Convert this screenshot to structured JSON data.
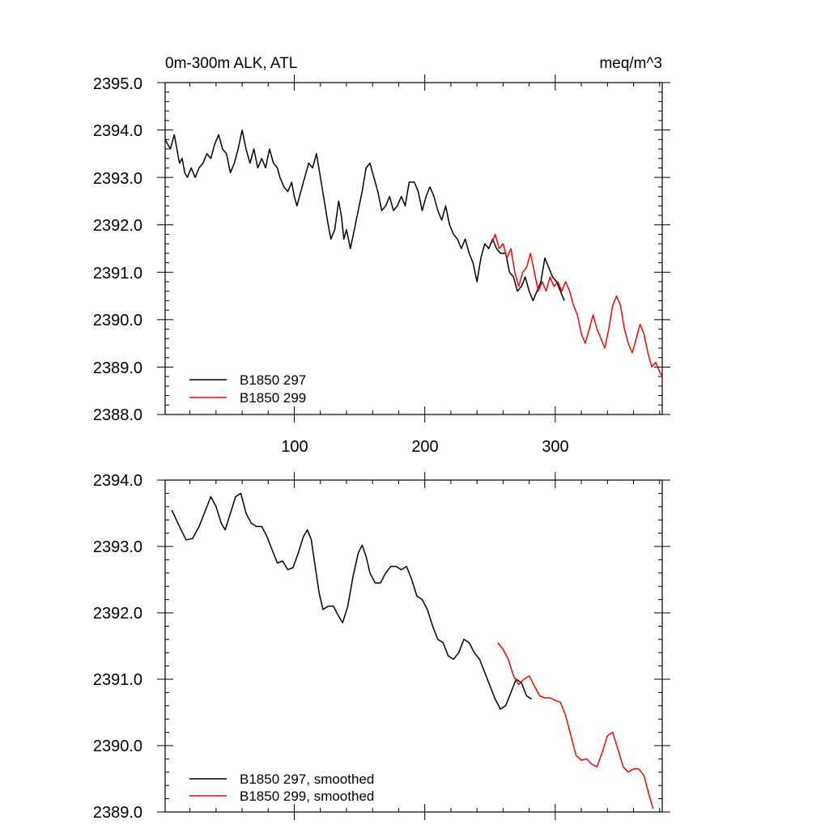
{
  "chart_data": [
    {
      "type": "line",
      "title": "0m-300m ALK, ATL",
      "units": "meq/m^3",
      "xlim": [
        1,
        382
      ],
      "ylim": [
        2388.0,
        2395.0
      ],
      "xticks": [
        100,
        200,
        300
      ],
      "xtick_labels": [
        "100",
        "200",
        "300"
      ],
      "yticks": [
        2388.0,
        2389.0,
        2390.0,
        2391.0,
        2392.0,
        2393.0,
        2394.0,
        2395.0
      ],
      "ytick_labels": [
        "2388.0",
        "2389.0",
        "2390.0",
        "2391.0",
        "2392.0",
        "2393.0",
        "2394.0",
        "2395.0"
      ],
      "legend_position": "bottom-left",
      "series": [
        {
          "name": "B1850 297",
          "color": "#000000",
          "points": [
            [
              1,
              2393.8
            ],
            [
              5,
              2393.6
            ],
            [
              8,
              2393.9
            ],
            [
              12,
              2393.3
            ],
            [
              14,
              2393.4
            ],
            [
              16,
              2393.1
            ],
            [
              18,
              2393.0
            ],
            [
              21,
              2393.2
            ],
            [
              24,
              2393.0
            ],
            [
              27,
              2393.2
            ],
            [
              30,
              2393.3
            ],
            [
              33,
              2393.5
            ],
            [
              36,
              2393.4
            ],
            [
              39,
              2393.7
            ],
            [
              42,
              2393.9
            ],
            [
              45,
              2393.6
            ],
            [
              48,
              2393.5
            ],
            [
              51,
              2393.1
            ],
            [
              54,
              2393.3
            ],
            [
              57,
              2393.6
            ],
            [
              60,
              2394.0
            ],
            [
              63,
              2393.6
            ],
            [
              66,
              2393.3
            ],
            [
              69,
              2393.6
            ],
            [
              72,
              2393.2
            ],
            [
              75,
              2393.4
            ],
            [
              78,
              2393.2
            ],
            [
              81,
              2393.6
            ],
            [
              84,
              2393.3
            ],
            [
              87,
              2393.2
            ],
            [
              89,
              2393.0
            ],
            [
              92,
              2392.8
            ],
            [
              95,
              2392.7
            ],
            [
              98,
              2392.9
            ],
            [
              100,
              2392.6
            ],
            [
              102,
              2392.4
            ],
            [
              105,
              2392.7
            ],
            [
              108,
              2393.0
            ],
            [
              111,
              2393.3
            ],
            [
              114,
              2393.2
            ],
            [
              117,
              2393.5
            ],
            [
              120,
              2393.0
            ],
            [
              123,
              2392.5
            ],
            [
              126,
              2392.0
            ],
            [
              128,
              2391.7
            ],
            [
              131,
              2391.9
            ],
            [
              134,
              2392.5
            ],
            [
              136,
              2392.2
            ],
            [
              138,
              2391.7
            ],
            [
              140,
              2391.9
            ],
            [
              143,
              2391.5
            ],
            [
              146,
              2391.9
            ],
            [
              149,
              2392.3
            ],
            [
              152,
              2392.7
            ],
            [
              155,
              2393.2
            ],
            [
              158,
              2393.3
            ],
            [
              161,
              2393.0
            ],
            [
              164,
              2392.7
            ],
            [
              167,
              2392.3
            ],
            [
              170,
              2392.4
            ],
            [
              173,
              2392.6
            ],
            [
              176,
              2392.3
            ],
            [
              179,
              2392.4
            ],
            [
              182,
              2392.6
            ],
            [
              185,
              2392.4
            ],
            [
              188,
              2392.9
            ],
            [
              192,
              2392.9
            ],
            [
              195,
              2392.7
            ],
            [
              198,
              2392.3
            ],
            [
              201,
              2392.6
            ],
            [
              204,
              2392.8
            ],
            [
              207,
              2392.6
            ],
            [
              210,
              2392.3
            ],
            [
              213,
              2392.1
            ],
            [
              216,
              2392.4
            ],
            [
              219,
              2392.0
            ],
            [
              222,
              2391.8
            ],
            [
              225,
              2391.7
            ],
            [
              228,
              2391.5
            ],
            [
              231,
              2391.7
            ],
            [
              234,
              2391.4
            ],
            [
              237,
              2391.2
            ],
            [
              240,
              2390.8
            ],
            [
              243,
              2391.3
            ],
            [
              246,
              2391.6
            ],
            [
              249,
              2391.5
            ],
            [
              252,
              2391.7
            ],
            [
              255,
              2391.5
            ],
            [
              258,
              2391.4
            ],
            [
              262,
              2391.4
            ],
            [
              265,
              2391.0
            ],
            [
              268,
              2390.9
            ],
            [
              271,
              2390.6
            ],
            [
              274,
              2390.7
            ],
            [
              277,
              2390.9
            ],
            [
              280,
              2390.6
            ],
            [
              283,
              2390.4
            ],
            [
              286,
              2390.6
            ],
            [
              289,
              2390.8
            ],
            [
              292,
              2391.3
            ],
            [
              295,
              2391.1
            ],
            [
              298,
              2390.9
            ],
            [
              301,
              2390.8
            ],
            [
              304,
              2390.6
            ],
            [
              307,
              2390.4
            ]
          ]
        },
        {
          "name": "B1850 299",
          "color": "#ff0000",
          "points": [
            [
              251,
              2391.6
            ],
            [
              254,
              2391.8
            ],
            [
              257,
              2391.5
            ],
            [
              260,
              2391.6
            ],
            [
              263,
              2391.3
            ],
            [
              266,
              2391.5
            ],
            [
              269,
              2391.0
            ],
            [
              272,
              2390.7
            ],
            [
              275,
              2391.0
            ],
            [
              278,
              2391.1
            ],
            [
              281,
              2391.4
            ],
            [
              284,
              2391.0
            ],
            [
              287,
              2390.6
            ],
            [
              290,
              2390.8
            ],
            [
              293,
              2390.6
            ],
            [
              296,
              2390.9
            ],
            [
              299,
              2390.7
            ],
            [
              302,
              2390.8
            ],
            [
              305,
              2390.6
            ],
            [
              308,
              2390.8
            ],
            [
              311,
              2390.6
            ],
            [
              314,
              2390.3
            ],
            [
              317,
              2390.1
            ],
            [
              320,
              2389.7
            ],
            [
              323,
              2389.5
            ],
            [
              326,
              2389.8
            ],
            [
              329,
              2390.1
            ],
            [
              332,
              2389.8
            ],
            [
              335,
              2389.6
            ],
            [
              338,
              2389.4
            ],
            [
              341,
              2389.8
            ],
            [
              344,
              2390.3
            ],
            [
              347,
              2390.5
            ],
            [
              350,
              2390.3
            ],
            [
              353,
              2389.8
            ],
            [
              356,
              2389.5
            ],
            [
              359,
              2389.3
            ],
            [
              362,
              2389.6
            ],
            [
              365,
              2389.9
            ],
            [
              368,
              2389.7
            ],
            [
              371,
              2389.3
            ],
            [
              374,
              2389.0
            ],
            [
              377,
              2389.1
            ],
            [
              380,
              2388.9
            ],
            [
              382,
              2388.8
            ]
          ]
        }
      ]
    },
    {
      "type": "line",
      "title": "",
      "units": "",
      "xlim": [
        1,
        382
      ],
      "ylim": [
        2389.0,
        2394.0
      ],
      "xticks": [
        100,
        200,
        300
      ],
      "xtick_labels": [],
      "yticks": [
        2389.0,
        2390.0,
        2391.0,
        2392.0,
        2393.0,
        2394.0
      ],
      "ytick_labels": [
        "2389.0",
        "2390.0",
        "2391.0",
        "2392.0",
        "2393.0",
        "2394.0"
      ],
      "legend_position": "bottom-left",
      "series": [
        {
          "name": "B1850 297, smoothed",
          "color": "#000000",
          "points": [
            [
              6,
              2393.55
            ],
            [
              12,
              2393.3
            ],
            [
              17,
              2393.1
            ],
            [
              22,
              2393.12
            ],
            [
              27,
              2393.3
            ],
            [
              32,
              2393.55
            ],
            [
              36,
              2393.75
            ],
            [
              40,
              2393.6
            ],
            [
              44,
              2393.35
            ],
            [
              47,
              2393.25
            ],
            [
              51,
              2393.5
            ],
            [
              55,
              2393.75
            ],
            [
              59,
              2393.8
            ],
            [
              63,
              2393.5
            ],
            [
              67,
              2393.35
            ],
            [
              71,
              2393.3
            ],
            [
              75,
              2393.3
            ],
            [
              79,
              2393.15
            ],
            [
              83,
              2392.95
            ],
            [
              87,
              2392.75
            ],
            [
              91,
              2392.78
            ],
            [
              95,
              2392.65
            ],
            [
              99,
              2392.68
            ],
            [
              103,
              2392.9
            ],
            [
              107,
              2393.15
            ],
            [
              110,
              2393.25
            ],
            [
              113,
              2393.1
            ],
            [
              116,
              2392.7
            ],
            [
              119,
              2392.3
            ],
            [
              122,
              2392.05
            ],
            [
              126,
              2392.1
            ],
            [
              130,
              2392.1
            ],
            [
              134,
              2391.95
            ],
            [
              137,
              2391.85
            ],
            [
              141,
              2392.1
            ],
            [
              145,
              2392.55
            ],
            [
              149,
              2392.9
            ],
            [
              152,
              2393.02
            ],
            [
              155,
              2392.85
            ],
            [
              158,
              2392.6
            ],
            [
              162,
              2392.45
            ],
            [
              166,
              2392.45
            ],
            [
              170,
              2392.6
            ],
            [
              174,
              2392.7
            ],
            [
              178,
              2392.7
            ],
            [
              182,
              2392.65
            ],
            [
              186,
              2392.7
            ],
            [
              190,
              2392.5
            ],
            [
              194,
              2392.25
            ],
            [
              198,
              2392.2
            ],
            [
              202,
              2392.05
            ],
            [
              206,
              2391.8
            ],
            [
              210,
              2391.6
            ],
            [
              214,
              2391.55
            ],
            [
              218,
              2391.35
            ],
            [
              222,
              2391.3
            ],
            [
              226,
              2391.4
            ],
            [
              230,
              2391.6
            ],
            [
              234,
              2391.55
            ],
            [
              238,
              2391.4
            ],
            [
              242,
              2391.3
            ],
            [
              246,
              2391.1
            ],
            [
              250,
              2390.9
            ],
            [
              254,
              2390.7
            ],
            [
              258,
              2390.55
            ],
            [
              262,
              2390.6
            ],
            [
              266,
              2390.8
            ],
            [
              270,
              2391.0
            ],
            [
              274,
              2390.95
            ],
            [
              278,
              2390.75
            ],
            [
              282,
              2390.7
            ]
          ]
        },
        {
          "name": "B1850 299, smoothed",
          "color": "#ff0000",
          "points": [
            [
              256,
              2391.55
            ],
            [
              260,
              2391.45
            ],
            [
              264,
              2391.3
            ],
            [
              268,
              2391.05
            ],
            [
              272,
              2390.92
            ],
            [
              276,
              2391.0
            ],
            [
              280,
              2391.05
            ],
            [
              284,
              2390.9
            ],
            [
              288,
              2390.75
            ],
            [
              292,
              2390.72
            ],
            [
              296,
              2390.72
            ],
            [
              300,
              2390.68
            ],
            [
              304,
              2390.65
            ],
            [
              308,
              2390.45
            ],
            [
              312,
              2390.15
            ],
            [
              316,
              2389.85
            ],
            [
              320,
              2389.78
            ],
            [
              324,
              2389.8
            ],
            [
              328,
              2389.72
            ],
            [
              332,
              2389.68
            ],
            [
              336,
              2389.9
            ],
            [
              340,
              2390.15
            ],
            [
              344,
              2390.2
            ],
            [
              348,
              2389.95
            ],
            [
              352,
              2389.68
            ],
            [
              356,
              2389.6
            ],
            [
              360,
              2389.65
            ],
            [
              364,
              2389.65
            ],
            [
              368,
              2389.55
            ],
            [
              372,
              2389.25
            ],
            [
              375,
              2389.05
            ]
          ]
        }
      ]
    }
  ]
}
